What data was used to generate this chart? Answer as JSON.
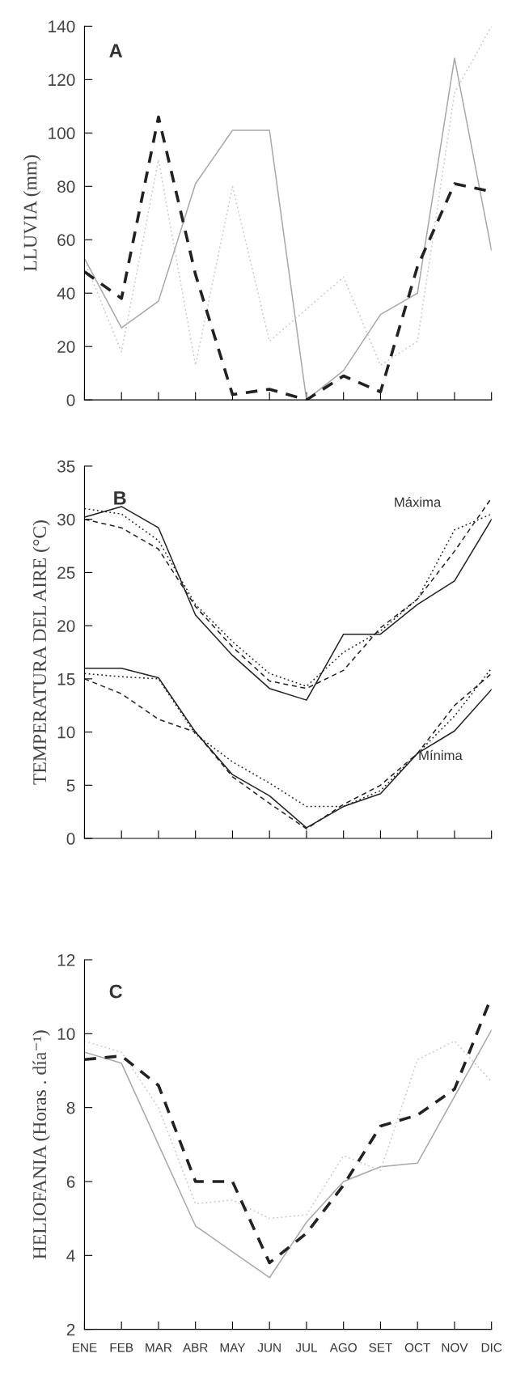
{
  "chart_data": [
    {
      "type": "line",
      "ylabel": "LLUVIA (mm)",
      "categories": [
        null,
        null,
        null,
        null,
        null,
        null,
        null,
        null,
        null,
        null,
        null,
        null
      ],
      "ylim": [
        0,
        140
      ],
      "yticks": [
        0,
        20,
        40,
        60,
        80,
        100,
        120,
        140
      ],
      "tick_labels": "y",
      "annotations": [
        "A"
      ],
      "series": [
        {
          "color": "#a8a8a8",
          "line_style": "solid",
          "values": [
            53,
            27,
            37,
            81,
            101,
            101,
            0,
            11,
            32,
            40,
            128,
            56
          ]
        },
        {
          "color": "#c8c8c8",
          "line_style": "dotted",
          "values": [
            52,
            18,
            90,
            13,
            80,
            22,
            34,
            46,
            13,
            22,
            115,
            140
          ]
        },
        {
          "color": "#222222",
          "line_style": "dashed",
          "values": [
            48,
            38,
            106,
            47,
            2,
            4,
            0,
            9,
            3,
            50,
            81,
            78
          ]
        }
      ]
    },
    {
      "type": "line",
      "ylabel": "TEMPERATURA DEL AIRE (°C)",
      "categories": [
        null,
        null,
        null,
        null,
        null,
        null,
        null,
        null,
        null,
        null,
        null,
        null
      ],
      "ylim": [
        0,
        35
      ],
      "yticks": [
        0,
        5,
        10,
        15,
        20,
        25,
        30,
        35
      ],
      "tick_labels": "y",
      "annotations": [
        "B",
        "Máxima",
        "Mínima"
      ],
      "series": [
        {
          "color": "#222222",
          "line_style": "solid",
          "values": [
            30.2,
            31.2,
            29.2,
            21,
            17.2,
            14.1,
            13.0,
            19.2,
            19.2,
            22,
            24.2,
            30
          ]
        },
        {
          "color": "#222222",
          "line_style": "dotted",
          "values": [
            31,
            30.5,
            28,
            22,
            18.5,
            15.5,
            14.3,
            17.5,
            19.5,
            22.5,
            29,
            30.5
          ]
        },
        {
          "color": "#222222",
          "line_style": "dashed",
          "values": [
            30,
            29.2,
            27.2,
            21.8,
            18,
            14.8,
            14.1,
            15.8,
            19.8,
            22.5,
            27,
            32
          ]
        },
        {
          "color": "#222222",
          "line_style": "solid",
          "values": [
            16,
            16,
            15.1,
            10,
            6,
            4,
            1,
            3,
            4.2,
            8,
            10.1,
            14
          ]
        },
        {
          "color": "#222222",
          "line_style": "dotted",
          "values": [
            15.5,
            15.2,
            15,
            9.8,
            7.2,
            5.2,
            3,
            3,
            4.5,
            8,
            11.5,
            16
          ]
        },
        {
          "color": "#222222",
          "line_style": "dashed",
          "values": [
            15,
            13.6,
            11.2,
            10,
            5.8,
            3.3,
            0.9,
            3.2,
            5,
            8,
            12.5,
            15.5
          ]
        }
      ]
    },
    {
      "type": "line",
      "ylabel": "HELIOFANIA (Horas . día⁻¹)",
      "categories": [
        "ENE",
        "FEB",
        "MAR",
        "ABR",
        "MAY",
        "JUN",
        "JUL",
        "AGO",
        "SET",
        "OCT",
        "NOV",
        "DIC"
      ],
      "ylim": [
        2,
        12
      ],
      "yticks": [
        2,
        4,
        6,
        8,
        10,
        12
      ],
      "annotations": [
        "C"
      ],
      "series": [
        {
          "color": "#a8a8a8",
          "line_style": "solid",
          "values": [
            9.5,
            9.2,
            7.0,
            4.8,
            4.1,
            3.4,
            4.9,
            6.0,
            6.4,
            6.5,
            8.3,
            10.1
          ]
        },
        {
          "color": "#c8c8c8",
          "line_style": "dotted",
          "values": [
            9.8,
            9.5,
            8.0,
            5.4,
            5.5,
            5.0,
            5.1,
            6.7,
            6.3,
            9.3,
            9.8,
            8.7
          ]
        },
        {
          "color": "#222222",
          "line_style": "dashed",
          "values": [
            9.3,
            9.4,
            8.6,
            6.0,
            6.0,
            3.8,
            4.6,
            5.9,
            7.5,
            7.8,
            8.5,
            11.0
          ]
        }
      ]
    }
  ]
}
